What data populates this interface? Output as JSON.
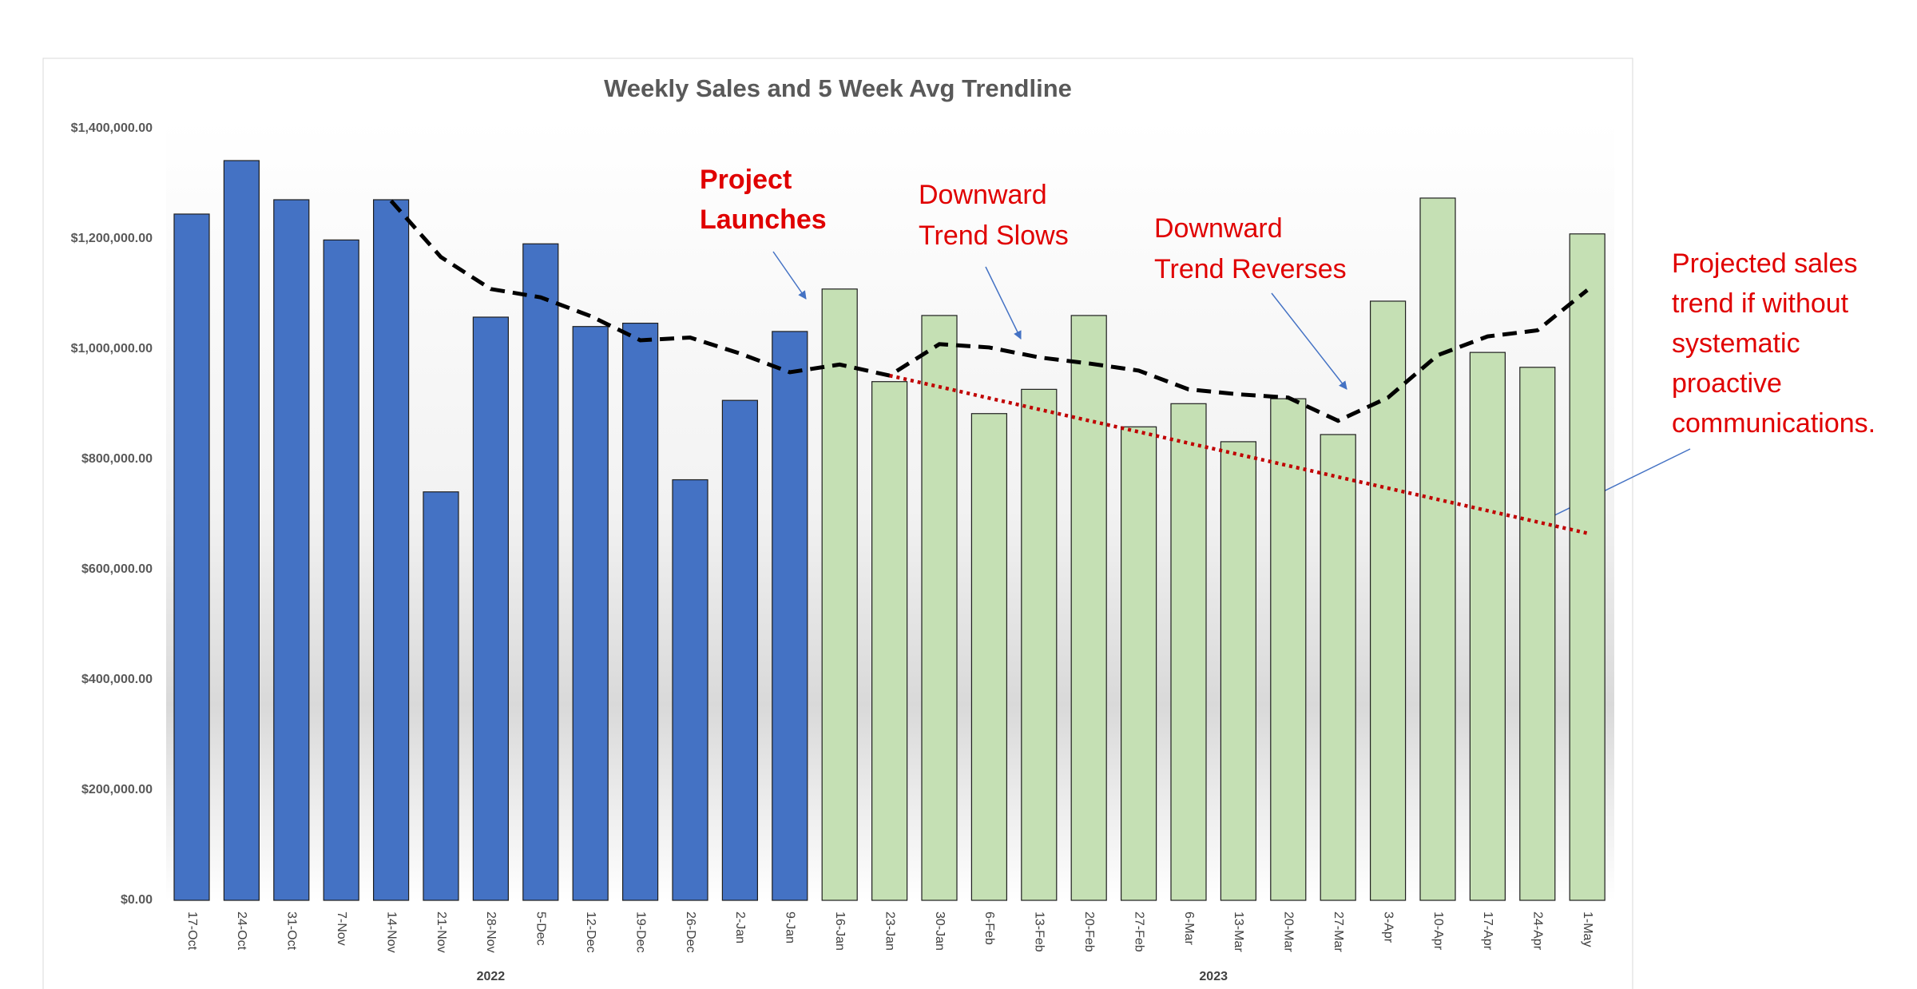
{
  "chart_data": {
    "type": "bar",
    "title": "Weekly Sales and 5 Week Avg Trendline",
    "categories": [
      "17-Oct",
      "24-Oct",
      "31-Oct",
      "7-Nov",
      "14-Nov",
      "21-Nov",
      "28-Nov",
      "5-Dec",
      "12-Dec",
      "19-Dec",
      "26-Dec",
      "2-Jan",
      "9-Jan",
      "16-Jan",
      "23-Jan",
      "30-Jan",
      "6-Feb",
      "13-Feb",
      "20-Feb",
      "27-Feb",
      "6-Mar",
      "13-Mar",
      "20-Mar",
      "27-Mar",
      "3-Apr",
      "10-Apr",
      "17-Apr",
      "24-Apr",
      "1-May"
    ],
    "series": [
      {
        "name": "2022",
        "type": "bar",
        "color": "#4472c4",
        "values": [
          1245000,
          1342000,
          1271000,
          1198000,
          1271000,
          741000,
          1058000,
          1191000,
          1041000,
          1047000,
          763000,
          907000,
          1032000,
          null,
          null,
          null,
          null,
          null,
          null,
          null,
          null,
          null,
          null,
          null,
          null,
          null,
          null,
          null,
          null
        ]
      },
      {
        "name": "2023",
        "type": "bar",
        "color": "#c5e0b4",
        "values": [
          null,
          null,
          null,
          null,
          null,
          null,
          null,
          null,
          null,
          null,
          null,
          null,
          null,
          1109000,
          941000,
          1061000,
          883000,
          927000,
          1061000,
          859000,
          901000,
          832000,
          910000,
          845000,
          1087000,
          1274000,
          994000,
          967000,
          1209000
        ]
      },
      {
        "type": "line",
        "color": "#000000",
        "dash": "dashed",
        "values": [
          null,
          null,
          null,
          null,
          1269000,
          1167000,
          1109000,
          1094000,
          1060000,
          1016000,
          1021000,
          992000,
          958000,
          972000,
          952000,
          1009000,
          1003000,
          985000,
          974000,
          961000,
          927000,
          918000,
          912000,
          870000,
          912000,
          989000,
          1023000,
          1034000,
          1107000
        ]
      },
      {
        "type": "line",
        "color": "#c00000",
        "dash": "dotted",
        "values": [
          null,
          null,
          null,
          null,
          null,
          null,
          null,
          null,
          null,
          null,
          null,
          null,
          null,
          null,
          952000,
          931600,
          911100,
          890700,
          870300,
          849900,
          829400,
          809000,
          788600,
          768100,
          747700,
          727300,
          706900,
          686400,
          666000
        ]
      }
    ],
    "ylim": [
      0,
      1400000
    ],
    "yticks": [
      {
        "value": 0,
        "label": "$0.00"
      },
      {
        "value": 200000,
        "label": "$200,000.00"
      },
      {
        "value": 400000,
        "label": "$400,000.00"
      },
      {
        "value": 600000,
        "label": "$600,000.00"
      },
      {
        "value": 800000,
        "label": "$800,000.00"
      },
      {
        "value": 1000000,
        "label": "$1,000,000.00"
      },
      {
        "value": 1200000,
        "label": "$1,200,000.00"
      },
      {
        "value": 1400000,
        "label": "$1,400,000.00"
      }
    ],
    "annotations": [
      {
        "lines": [
          "Project",
          "Launches"
        ]
      },
      {
        "lines": [
          "Downward",
          "Trend Slows"
        ]
      },
      {
        "lines": [
          "Downward",
          "Trend Reverses"
        ]
      },
      {
        "lines": [
          "Projected sales",
          "trend if without",
          "systematic",
          "proactive",
          "communications."
        ]
      }
    ]
  }
}
